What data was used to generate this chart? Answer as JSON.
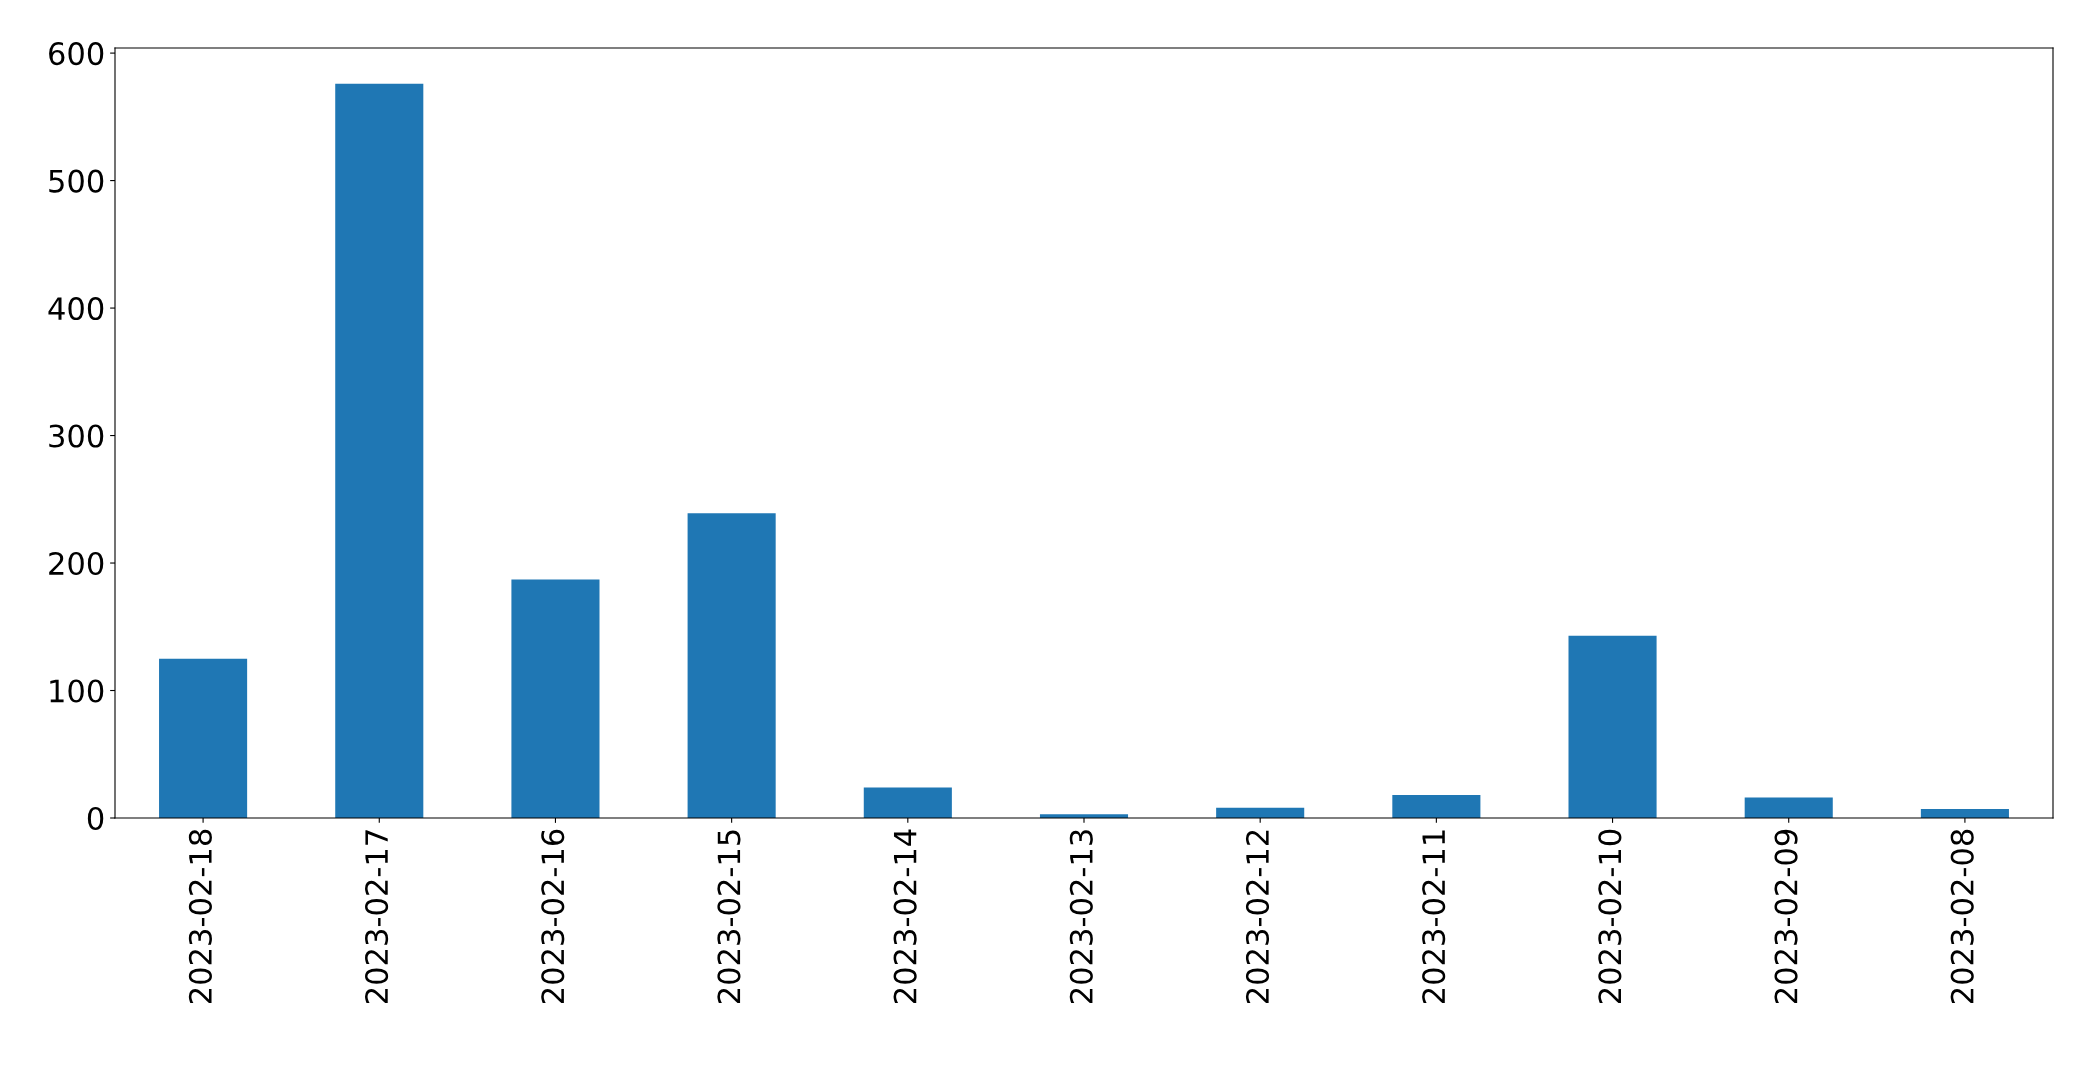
{
  "chart_data": {
    "type": "bar",
    "categories": [
      "2023-02-18",
      "2023-02-17",
      "2023-02-16",
      "2023-02-15",
      "2023-02-14",
      "2023-02-13",
      "2023-02-12",
      "2023-02-11",
      "2023-02-10",
      "2023-02-09",
      "2023-02-08"
    ],
    "values": [
      125,
      576,
      187,
      239,
      24,
      3,
      8,
      18,
      143,
      16,
      7
    ],
    "color": "#1f77b4",
    "ylim": [
      0,
      604
    ],
    "yticks": [
      0,
      100,
      200,
      300,
      400,
      500,
      600
    ],
    "grid": false,
    "legend": false
  }
}
